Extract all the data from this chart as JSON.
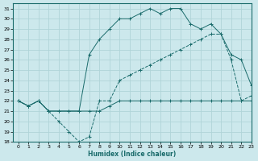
{
  "xlabel": "Humidex (Indice chaleur)",
  "bg_color": "#cce8ec",
  "grid_color": "#b0d4d8",
  "line_color": "#1a6b6b",
  "xlim": [
    -0.5,
    23
  ],
  "ylim": [
    18,
    31.5
  ],
  "xticks": [
    0,
    1,
    2,
    3,
    4,
    5,
    6,
    7,
    8,
    9,
    10,
    11,
    12,
    13,
    14,
    15,
    16,
    17,
    18,
    19,
    20,
    21,
    22,
    23
  ],
  "yticks": [
    18,
    19,
    20,
    21,
    22,
    23,
    24,
    25,
    26,
    27,
    28,
    29,
    30,
    31
  ],
  "line1_x": [
    0,
    1,
    2,
    3,
    4,
    5,
    6,
    7,
    8,
    9,
    10,
    11,
    12,
    13,
    14,
    15,
    16,
    17,
    18,
    19,
    20,
    21,
    22,
    23
  ],
  "line1_y": [
    22,
    21.5,
    22,
    21,
    20,
    19,
    18,
    18.5,
    22,
    22,
    24,
    24.5,
    25,
    25.5,
    26,
    26.5,
    27,
    27.5,
    28,
    28.5,
    28.5,
    26,
    22,
    22.5
  ],
  "line2_x": [
    0,
    1,
    2,
    3,
    4,
    5,
    6,
    7,
    8,
    9,
    10,
    11,
    12,
    13,
    14,
    15,
    16,
    17,
    18,
    19,
    20,
    21,
    22,
    23
  ],
  "line2_y": [
    22,
    21.5,
    22,
    21,
    21,
    21,
    21,
    21,
    21,
    21.5,
    22,
    22,
    22,
    22,
    22,
    22,
    22,
    22,
    22,
    22,
    22,
    22,
    22,
    22
  ],
  "line3_x": [
    0,
    1,
    2,
    3,
    4,
    5,
    6,
    7,
    8,
    9,
    10,
    11,
    12,
    13,
    14,
    15,
    16,
    17,
    18,
    19,
    20,
    21,
    22,
    23
  ],
  "line3_y": [
    22,
    21.5,
    22,
    21,
    21,
    21,
    21,
    26.5,
    28,
    29,
    30,
    30,
    30.5,
    31,
    30.5,
    31,
    31,
    29.5,
    29,
    29.5,
    28.5,
    26.5,
    26,
    23.5
  ]
}
